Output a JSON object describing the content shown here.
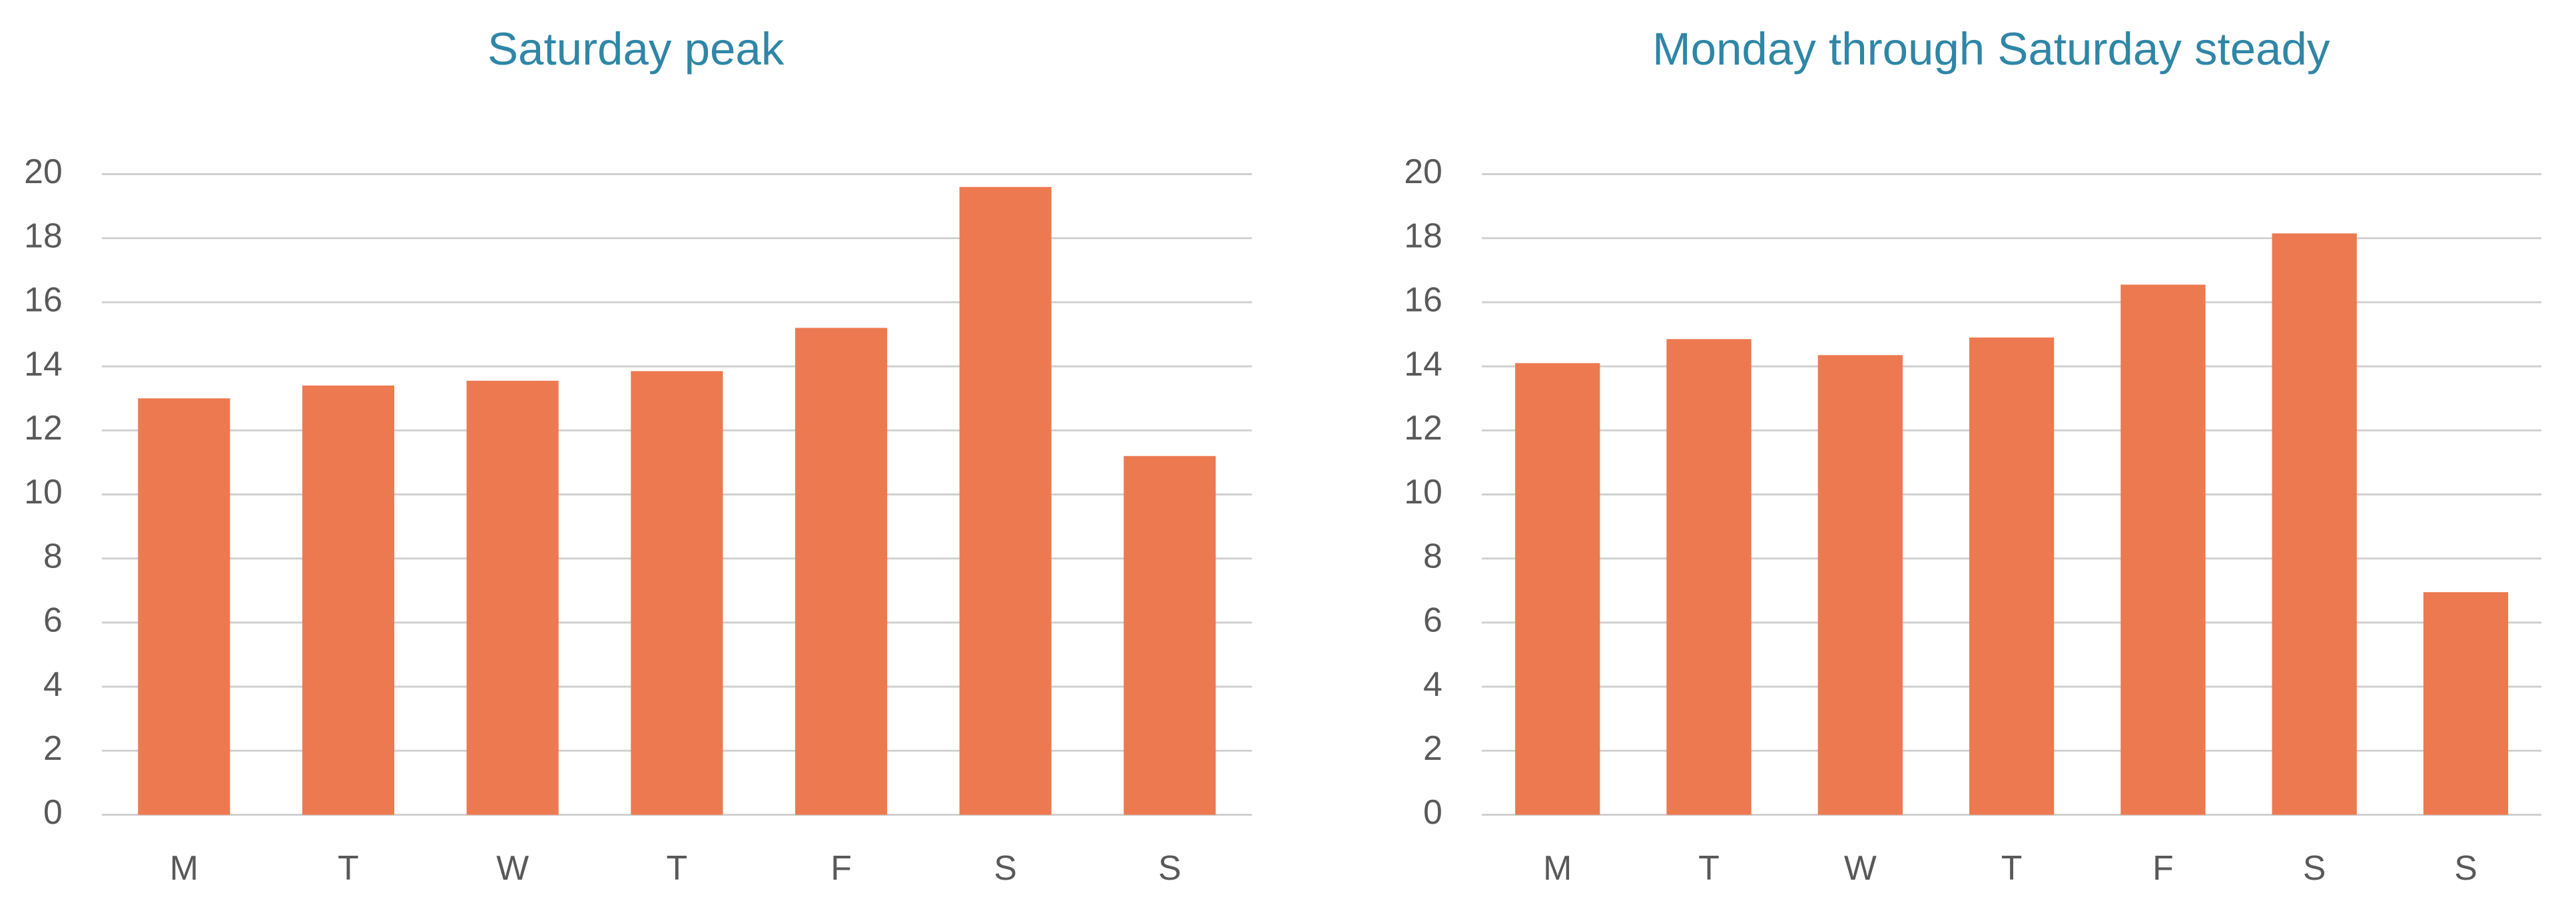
{
  "chart_data": [
    {
      "type": "bar",
      "title": "Saturday peak",
      "categories": [
        "M",
        "T",
        "W",
        "T",
        "F",
        "S",
        "S"
      ],
      "values": [
        13.0,
        13.4,
        13.55,
        13.85,
        15.2,
        19.6,
        11.2
      ],
      "color": "#ed7950",
      "ylim": [
        0,
        20
      ],
      "yticks": [
        0,
        2,
        4,
        6,
        8,
        10,
        12,
        14,
        16,
        18,
        20
      ],
      "grid": true
    },
    {
      "type": "bar",
      "title": "Monday through Saturday steady",
      "categories": [
        "M",
        "T",
        "W",
        "T",
        "F",
        "S",
        "S"
      ],
      "values": [
        14.1,
        14.85,
        14.35,
        14.9,
        16.55,
        18.15,
        6.95
      ],
      "color": "#ed7950",
      "ylim": [
        0,
        20
      ],
      "yticks": [
        0,
        2,
        4,
        6,
        8,
        10,
        12,
        14,
        16,
        18,
        20
      ],
      "grid": true
    }
  ]
}
